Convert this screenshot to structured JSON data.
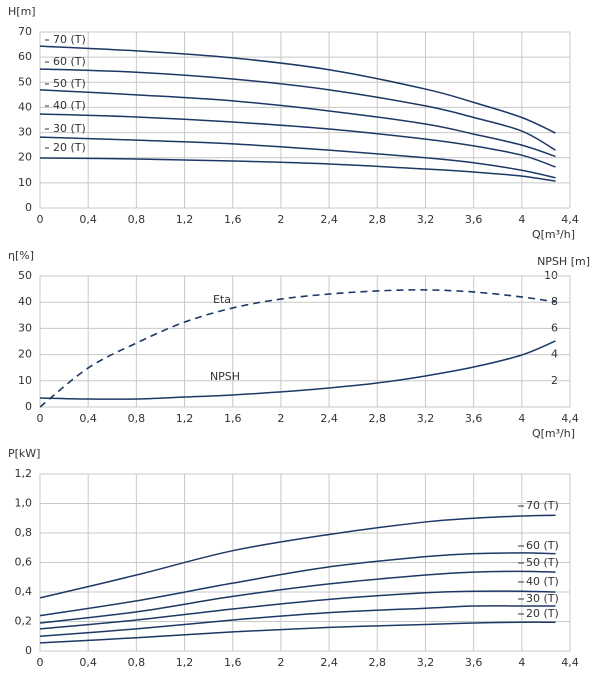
{
  "chart_data": [
    {
      "type": "line",
      "y_label": "H[m]",
      "x_label": "Q[m³/h]",
      "xlim": [
        0,
        4.4
      ],
      "xticks": [
        0,
        {
          "value": 0.4,
          "label": "0,4"
        },
        {
          "value": 0.8,
          "label": "0,8"
        },
        {
          "value": 1.2,
          "label": "1,2"
        },
        {
          "value": 1.6,
          "label": "1,6"
        },
        2,
        {
          "value": 2.4,
          "label": "2,4"
        },
        {
          "value": 2.8,
          "label": "2,8"
        },
        {
          "value": 3.2,
          "label": "3,2"
        },
        {
          "value": 3.6,
          "label": "3,6"
        },
        4,
        {
          "value": 4.4,
          "label": "4,4"
        }
      ],
      "ylim": [
        0,
        70
      ],
      "yticks": [
        0,
        10,
        20,
        30,
        40,
        50,
        60,
        70
      ],
      "grid": true,
      "x": [
        0,
        0.8,
        1.6,
        2.4,
        3.2,
        3.6,
        4.0,
        4.28
      ],
      "series": [
        {
          "name": "70 (T)",
          "color": "#1d3866",
          "values": [
            64.4,
            62.5,
            59.7,
            55,
            47.3,
            42,
            36,
            29.8
          ]
        },
        {
          "name": "60 (T)",
          "color": "#1d3866",
          "values": [
            55.3,
            54,
            51.3,
            47,
            40.6,
            36,
            30.6,
            23
          ]
        },
        {
          "name": "50 (T)",
          "color": "#1d3866",
          "values": [
            47,
            45,
            42.6,
            38.6,
            33.4,
            29.4,
            25,
            20.5
          ]
        },
        {
          "name": "40 (T)",
          "color": "#1d3866",
          "values": [
            37.4,
            36.2,
            34.2,
            31.4,
            27.4,
            24.7,
            21,
            16.3
          ]
        },
        {
          "name": "30 (T)",
          "color": "#1d3866",
          "values": [
            28.2,
            27,
            25.5,
            23,
            20,
            18,
            15,
            12
          ]
        },
        {
          "name": "20 (T)",
          "color": "#1d3866",
          "values": [
            19.9,
            19.5,
            18.7,
            17.5,
            15.5,
            14.3,
            12.7,
            10.7
          ]
        }
      ]
    },
    {
      "type": "line",
      "y_label": "η[%]",
      "y2_label": "NPSH [m]",
      "x_label": "Q[m³/h]",
      "xlim": [
        0,
        4.4
      ],
      "xticks": [
        0,
        {
          "value": 0.4,
          "label": "0,4"
        },
        {
          "value": 0.8,
          "label": "0,8"
        },
        {
          "value": 1.2,
          "label": "1,2"
        },
        {
          "value": 1.6,
          "label": "1,6"
        },
        2,
        {
          "value": 2.4,
          "label": "2,4"
        },
        {
          "value": 2.8,
          "label": "2,8"
        },
        {
          "value": 3.2,
          "label": "3,2"
        },
        {
          "value": 3.6,
          "label": "3,6"
        },
        4,
        {
          "value": 4.4,
          "label": "4,4"
        }
      ],
      "ylim": [
        0,
        50
      ],
      "yticks": [
        0,
        10,
        20,
        30,
        40,
        50
      ],
      "y2lim": [
        0,
        10
      ],
      "y2ticks": [
        2,
        4,
        6,
        8,
        10
      ],
      "grid": true,
      "x": [
        0,
        0.4,
        0.8,
        1.2,
        1.6,
        2.0,
        2.4,
        2.8,
        3.2,
        3.6,
        4.0,
        4.28
      ],
      "series": [
        {
          "name": "Eta",
          "color": "#1d3866",
          "dashed": true,
          "values": [
            0,
            14.9,
            24.4,
            32.4,
            37.8,
            41.2,
            43.1,
            44.3,
            44.7,
            43.9,
            42,
            40.1
          ]
        },
        {
          "name": "NPSH",
          "color": "#1d3866",
          "axis": "y2",
          "values": [
            0.69,
            0.61,
            0.61,
            0.76,
            0.92,
            1.15,
            1.45,
            1.83,
            2.37,
            3.05,
            3.97,
            5.04
          ]
        }
      ]
    },
    {
      "type": "line",
      "y_label": "P[kW]",
      "xlim": [
        0,
        4.4
      ],
      "xticks": [
        0,
        {
          "value": 0.4,
          "label": "0,4"
        },
        {
          "value": 0.8,
          "label": "0,8"
        },
        {
          "value": 1.2,
          "label": "1,2"
        },
        {
          "value": 1.6,
          "label": "1,6"
        },
        2,
        {
          "value": 2.4,
          "label": "2,4"
        },
        {
          "value": 2.8,
          "label": "2,8"
        },
        {
          "value": 3.2,
          "label": "3,2"
        },
        {
          "value": 3.6,
          "label": "3,6"
        },
        4,
        {
          "value": 4.4,
          "label": "4,4"
        }
      ],
      "ylim": [
        0,
        1.2
      ],
      "yticks": [
        0,
        {
          "value": 0.2,
          "label": "0,2"
        },
        {
          "value": 0.4,
          "label": "0,4"
        },
        {
          "value": 0.6,
          "label": "0,6"
        },
        {
          "value": 0.8,
          "label": "0,8"
        },
        {
          "value": 1.0,
          "label": "1,0"
        },
        {
          "value": 1.2,
          "label": "1,2"
        }
      ],
      "grid": true,
      "x": [
        0,
        0.8,
        1.6,
        2.4,
        3.2,
        3.6,
        4.0,
        4.28
      ],
      "series": [
        {
          "name": "70 (T)",
          "color": "#1d3866",
          "values": [
            0.36,
            0.515,
            0.68,
            0.79,
            0.875,
            0.9,
            0.915,
            0.92
          ]
        },
        {
          "name": "60 (T)",
          "color": "#1d3866",
          "values": [
            0.24,
            0.34,
            0.46,
            0.57,
            0.64,
            0.66,
            0.665,
            0.66
          ]
        },
        {
          "name": "50 (T)",
          "color": "#1d3866",
          "values": [
            0.19,
            0.265,
            0.37,
            0.455,
            0.515,
            0.535,
            0.54,
            0.535
          ]
        },
        {
          "name": "40 (T)",
          "color": "#1d3866",
          "values": [
            0.15,
            0.21,
            0.285,
            0.35,
            0.395,
            0.405,
            0.405,
            0.4
          ]
        },
        {
          "name": "30 (T)",
          "color": "#1d3866",
          "values": [
            0.1,
            0.15,
            0.21,
            0.26,
            0.29,
            0.305,
            0.305,
            0.305
          ]
        },
        {
          "name": "20 (T)",
          "color": "#1d3866",
          "values": [
            0.055,
            0.09,
            0.13,
            0.16,
            0.18,
            0.19,
            0.195,
            0.195
          ]
        }
      ]
    }
  ]
}
